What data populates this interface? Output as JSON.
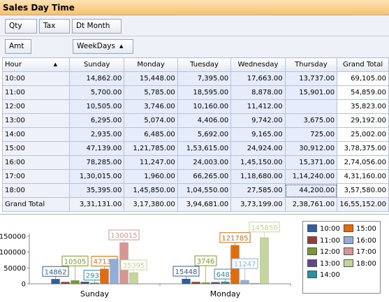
{
  "window": {
    "title": "Sales Day Time"
  },
  "filter_fields": [
    {
      "label": "Qty"
    },
    {
      "label": "Tax"
    },
    {
      "label": "Dt Month"
    }
  ],
  "data_field": {
    "label": "Amt"
  },
  "column_field": {
    "label": "WeekDays",
    "sort_icon": "sort-ascending-icon",
    "filter_icon": "filter-funnel-icon"
  },
  "row_field": {
    "label": "Hour",
    "sort_icon": "sort-ascending-icon"
  },
  "pivot": {
    "columns": [
      "Sunday",
      "Monday",
      "Tuesday",
      "Wednesday",
      "Thursday",
      "Grand Total"
    ],
    "rows": [
      {
        "label": "10:00",
        "values": [
          "14,862.00",
          "15,448.00",
          "7,395.00",
          "17,663.00",
          "13,737.00",
          "69,105.00"
        ]
      },
      {
        "label": "11:00",
        "values": [
          "5,700.00",
          "5,785.00",
          "18,595.00",
          "8,878.00",
          "15,901.00",
          "54,859.00"
        ]
      },
      {
        "label": "12:00",
        "values": [
          "10,505.00",
          "3,746.00",
          "10,160.00",
          "11,412.00",
          "",
          "35,823.00"
        ]
      },
      {
        "label": "13:00",
        "values": [
          "6,295.00",
          "5,074.00",
          "4,406.00",
          "9,742.00",
          "3,675.00",
          "29,192.00"
        ]
      },
      {
        "label": "14:00",
        "values": [
          "2,935.00",
          "6,485.00",
          "5,692.00",
          "9,165.00",
          "725.00",
          "25,002.00"
        ]
      },
      {
        "label": "15:00",
        "values": [
          "47,139.00",
          "1,21,785.00",
          "1,53,615.00",
          "24,924.00",
          "30,912.00",
          "3,78,375.00"
        ]
      },
      {
        "label": "16:00",
        "values": [
          "78,285.00",
          "11,247.00",
          "24,003.00",
          "1,45,150.00",
          "15,371.00",
          "2,74,056.00"
        ]
      },
      {
        "label": "17:00",
        "values": [
          "1,30,015.00",
          "1,960.00",
          "66,265.00",
          "1,18,680.00",
          "1,14,240.00",
          "4,31,160.00"
        ]
      },
      {
        "label": "18:00",
        "values": [
          "35,395.00",
          "1,45,850.00",
          "1,04,550.00",
          "27,585.00",
          "44,200.00",
          "3,57,580.00"
        ]
      }
    ],
    "grand_total": {
      "label": "Grand Total",
      "values": [
        "3,31,131.00",
        "3,17,380.00",
        "3,94,681.00",
        "3,73,199.00",
        "2,38,761.00",
        "16,55,152.00"
      ]
    }
  },
  "chart_data": {
    "type": "bar",
    "categories": [
      "Sunday",
      "Monday"
    ],
    "series": [
      {
        "name": "10:00",
        "color": "#2f5f9e",
        "values": [
          14862,
          15448
        ],
        "label_shown": [
          true,
          true
        ]
      },
      {
        "name": "11:00",
        "color": "#9b3a38",
        "values": [
          5700,
          5785
        ],
        "label_shown": [
          false,
          false
        ]
      },
      {
        "name": "12:00",
        "color": "#7a9a2e",
        "values": [
          10505,
          3746
        ],
        "label_shown": [
          true,
          true
        ]
      },
      {
        "name": "13:00",
        "color": "#5e4a8a",
        "values": [
          6295,
          5074
        ],
        "label_shown": [
          false,
          false
        ]
      },
      {
        "name": "14:00",
        "color": "#2c8fa8",
        "values": [
          2935,
          6485
        ],
        "label_shown": [
          true,
          true
        ]
      },
      {
        "name": "15:00",
        "color": "#e36c0a",
        "values": [
          47139,
          121785
        ],
        "label_shown": [
          true,
          true
        ]
      },
      {
        "name": "16:00",
        "color": "#8eaedb",
        "values": [
          78285,
          11247
        ],
        "label_shown": [
          false,
          true
        ]
      },
      {
        "name": "17:00",
        "color": "#d99594",
        "values": [
          130015,
          1960
        ],
        "label_shown": [
          true,
          false
        ]
      },
      {
        "name": "18:00",
        "color": "#c3d69b",
        "values": [
          35395,
          145850
        ],
        "label_shown": [
          true,
          true
        ]
      }
    ],
    "ylim": [
      0,
      150000
    ],
    "yticks": [
      0,
      50000,
      100000,
      150000
    ],
    "ytick_labels": [
      "0",
      "50000",
      "100000",
      "150000"
    ],
    "grid": false,
    "legend": "right"
  }
}
